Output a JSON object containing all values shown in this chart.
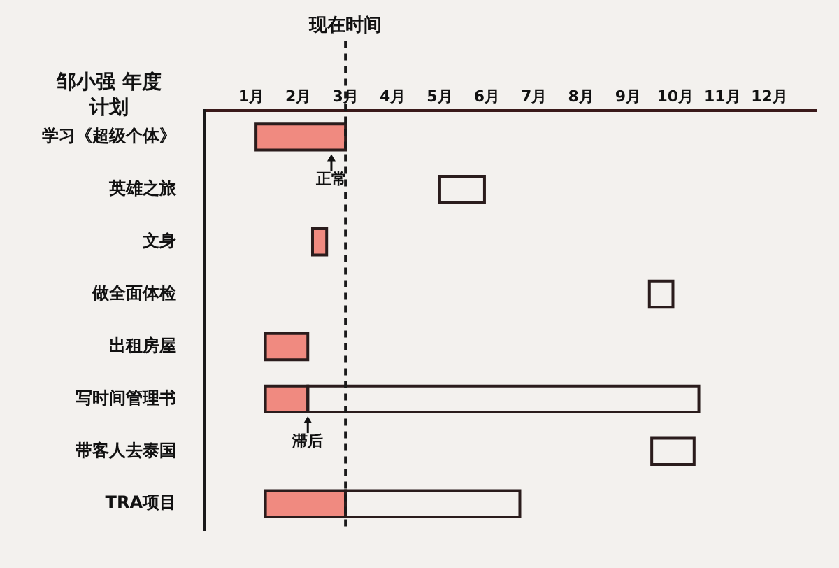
{
  "chart_data": {
    "type": "bar",
    "orientation": "horizontal",
    "title": "邹小强 年度计划",
    "categories": [
      "学习《超级个体》",
      "英雄之旅",
      "文身",
      "做全面体检",
      "出租房屋",
      "写时间管理书",
      "带客人去泰国",
      "TRA项目"
    ],
    "series": [
      {
        "color": "#f08a80",
        "base": [
          1.1,
          null,
          2.3,
          null,
          1.3,
          1.3,
          null,
          1.3
        ],
        "values": [
          1.9,
          null,
          0.3,
          null,
          0.9,
          0.9,
          null,
          1.7
        ]
      },
      {
        "color": "#f3f1ee",
        "base": [
          null,
          5,
          null,
          9.45,
          null,
          2.2,
          9.5,
          3
        ],
        "values": [
          null,
          0.95,
          null,
          0.5,
          null,
          8.3,
          0.9,
          3.7
        ]
      }
    ],
    "xlim": [
      0,
      13
    ],
    "xticks": [
      {
        "value": 1,
        "label": "1月"
      },
      {
        "value": 2,
        "label": "2月"
      },
      {
        "value": 3,
        "label": "3月"
      },
      {
        "value": 4,
        "label": "4月"
      },
      {
        "value": 5,
        "label": "5月"
      },
      {
        "value": 6,
        "label": "6月"
      },
      {
        "value": 7,
        "label": "7月"
      },
      {
        "value": 8,
        "label": "8月"
      },
      {
        "value": 9,
        "label": "9月"
      },
      {
        "value": 10,
        "label": "10月"
      },
      {
        "value": 11,
        "label": "11月"
      },
      {
        "value": 12,
        "label": "12月"
      }
    ],
    "ref_lines": [
      {
        "axis": "x",
        "value": 3,
        "label": "现在时间",
        "line_style": "dashed",
        "color": "#1a1a1a"
      }
    ],
    "annotations": [
      {
        "text": "正常",
        "x": 2.7,
        "y": "学习《超级个体》"
      },
      {
        "text": "滞后",
        "x": 2.2,
        "y": "写时间管理书"
      }
    ],
    "grid": false,
    "legend": false
  }
}
